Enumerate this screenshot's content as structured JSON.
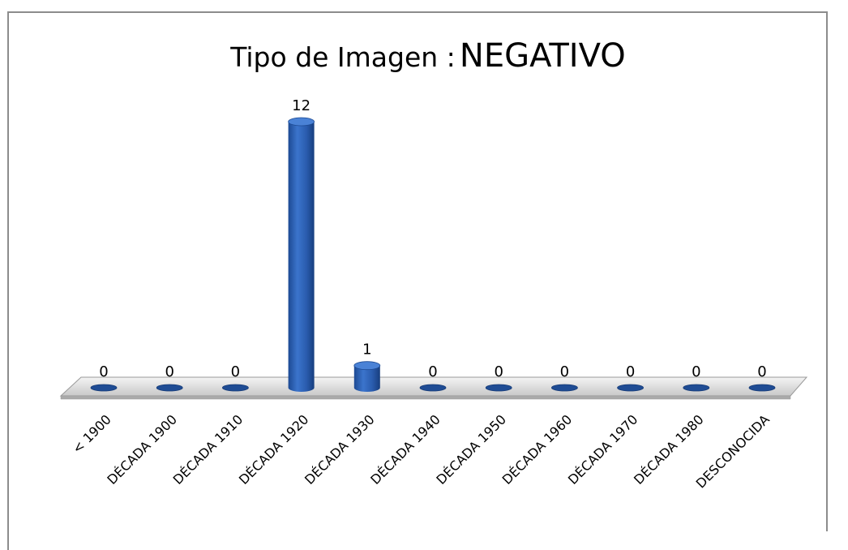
{
  "chart_data": {
    "type": "bar",
    "title": [
      "Tipo de Imagen :",
      "NEGATIVO"
    ],
    "categories": [
      "< 1900",
      "DÉCADA 1900",
      "DÉCADA 1910",
      "DÉCADA 1920",
      "DÉCADA 1930",
      "DÉCADA 1940",
      "DÉCADA 1950",
      "DÉCADA 1960",
      "DÉCADA 1970",
      "DÉCADA 1980",
      "DESCONOCIDA"
    ],
    "values": [
      0,
      0,
      0,
      12,
      1,
      0,
      0,
      0,
      0,
      0,
      0
    ],
    "color": "#2f63b4"
  }
}
